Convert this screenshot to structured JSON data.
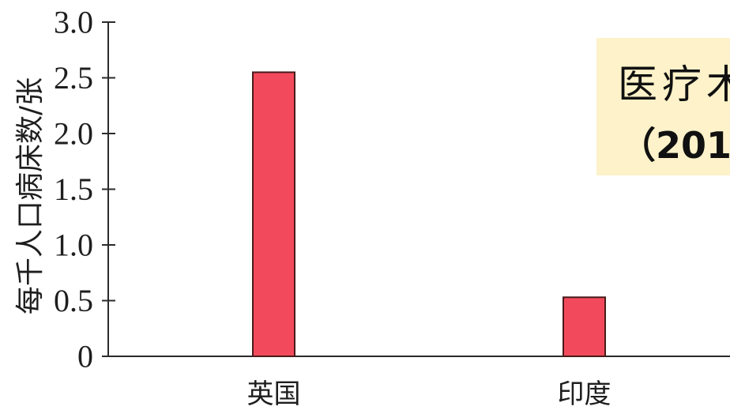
{
  "chart_data": {
    "type": "bar",
    "title": "",
    "xlabel": "",
    "ylabel": "每千人口病床数/张",
    "categories": [
      "英国",
      "印度"
    ],
    "values": [
      2.55,
      0.53
    ],
    "ylim": [
      0,
      3.0
    ],
    "yticks": [
      0,
      0.5,
      1.0,
      1.5,
      2.0,
      2.5,
      3.0
    ],
    "ytick_labels": [
      "0",
      "0.5",
      "1.0",
      "1.5",
      "2.0",
      "2.5",
      "3.0"
    ],
    "grid": false,
    "legend": "none",
    "bar_color": "#f24a5c",
    "bar_outline_color": "#4a1a1a"
  },
  "callout": {
    "line1": "医疗木",
    "line2": "（201",
    "background": "#fdf2c9"
  }
}
